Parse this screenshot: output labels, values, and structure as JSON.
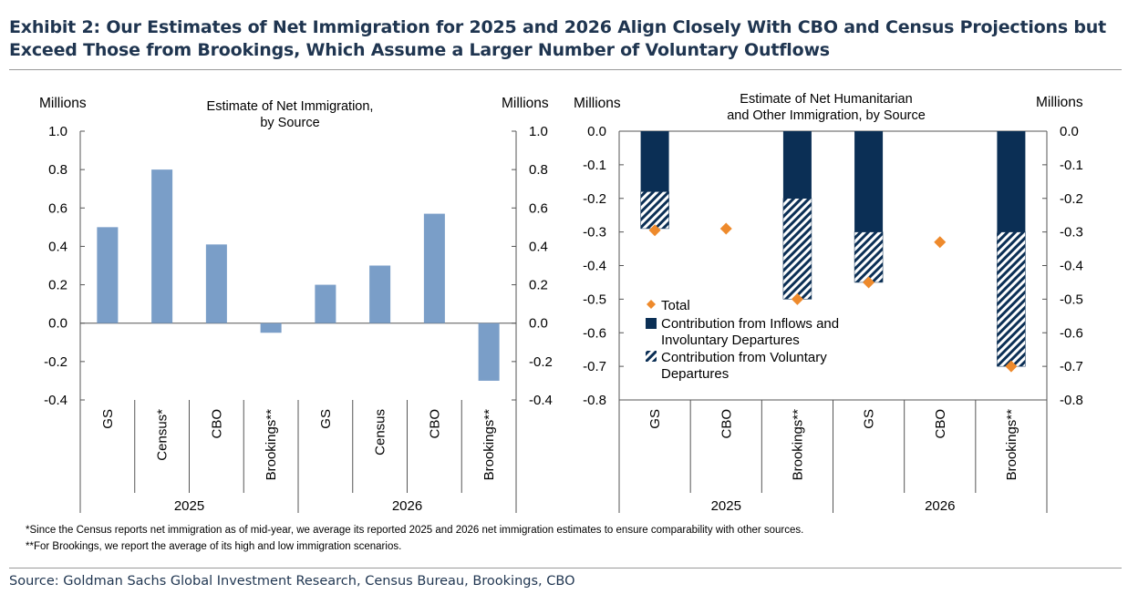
{
  "title": "Exhibit 2: Our Estimates of Net Immigration for 2025 and 2026 Align Closely With CBO and Census Projections but Exceed Those from Brookings, Which Assume a Larger Number of Voluntary Outflows",
  "notes": [
    "*Since the Census reports net immigration as of mid-year, we average its reported 2025 and 2026 net immigration estimates to ensure comparability with other sources.",
    "**For Brookings, we report the average of its high and low immigration scenarios."
  ],
  "source": "Source: Goldman Sachs Global Investment Research, Census Bureau, Brookings, CBO",
  "colors": {
    "title": "#1f3550",
    "bar_light": "#7a9ec8",
    "navy": "#0b2f55",
    "orange": "#ee8a2c"
  },
  "chart_data": [
    {
      "type": "bar",
      "title_lines": [
        "Estimate of Net Immigration,",
        "by Source"
      ],
      "ylabel_left": "Millions",
      "ylabel_right": "Millions",
      "ylim": [
        -0.4,
        1.0
      ],
      "yticks": [
        "1.0",
        "0.8",
        "0.6",
        "0.4",
        "0.2",
        "0.0",
        "-0.2",
        "-0.4"
      ],
      "ytick_values": [
        1.0,
        0.8,
        0.6,
        0.4,
        0.2,
        0.0,
        -0.2,
        -0.4
      ],
      "categories": [
        "GS",
        "Census*",
        "CBO",
        "Brookings**",
        "GS",
        "Census",
        "CBO",
        "Brookings**"
      ],
      "groups": [
        "2025",
        "2026"
      ],
      "values": [
        0.5,
        0.8,
        0.41,
        -0.05,
        0.2,
        0.3,
        0.57,
        -0.3
      ],
      "grid": false
    },
    {
      "type": "bar",
      "stacked": true,
      "title_lines": [
        "Estimate of Net Humanitarian",
        "and Other Immigration, by Source"
      ],
      "ylabel_left": "Millions",
      "ylabel_right": "Millions",
      "ylim": [
        -0.8,
        0.0
      ],
      "yticks": [
        "0.0",
        "-0.1",
        "-0.2",
        "-0.3",
        "-0.4",
        "-0.5",
        "-0.6",
        "-0.7",
        "-0.8"
      ],
      "ytick_values": [
        0.0,
        -0.1,
        -0.2,
        -0.3,
        -0.4,
        -0.5,
        -0.6,
        -0.7,
        -0.8
      ],
      "categories": [
        "GS",
        "CBO",
        "Brookings**",
        "GS",
        "CBO",
        "Brookings**"
      ],
      "groups": [
        "2025",
        "2026"
      ],
      "series": [
        {
          "name": "Contribution from Inflows and Involuntary Departures",
          "values": [
            -0.18,
            null,
            -0.2,
            -0.3,
            null,
            -0.3
          ]
        },
        {
          "name": "Contribution from Voluntary Departures",
          "values": [
            -0.11,
            null,
            -0.3,
            -0.15,
            null,
            -0.4
          ]
        },
        {
          "name": "Total",
          "values": [
            -0.295,
            -0.29,
            -0.5,
            -0.45,
            -0.33,
            -0.7
          ]
        }
      ],
      "legend_labels": [
        [
          "Total"
        ],
        [
          "Contribution from Inflows and",
          "Involuntary Departures"
        ],
        [
          "Contribution from Voluntary",
          "Departures"
        ]
      ],
      "legend_position": "lower-left",
      "grid": false
    }
  ]
}
